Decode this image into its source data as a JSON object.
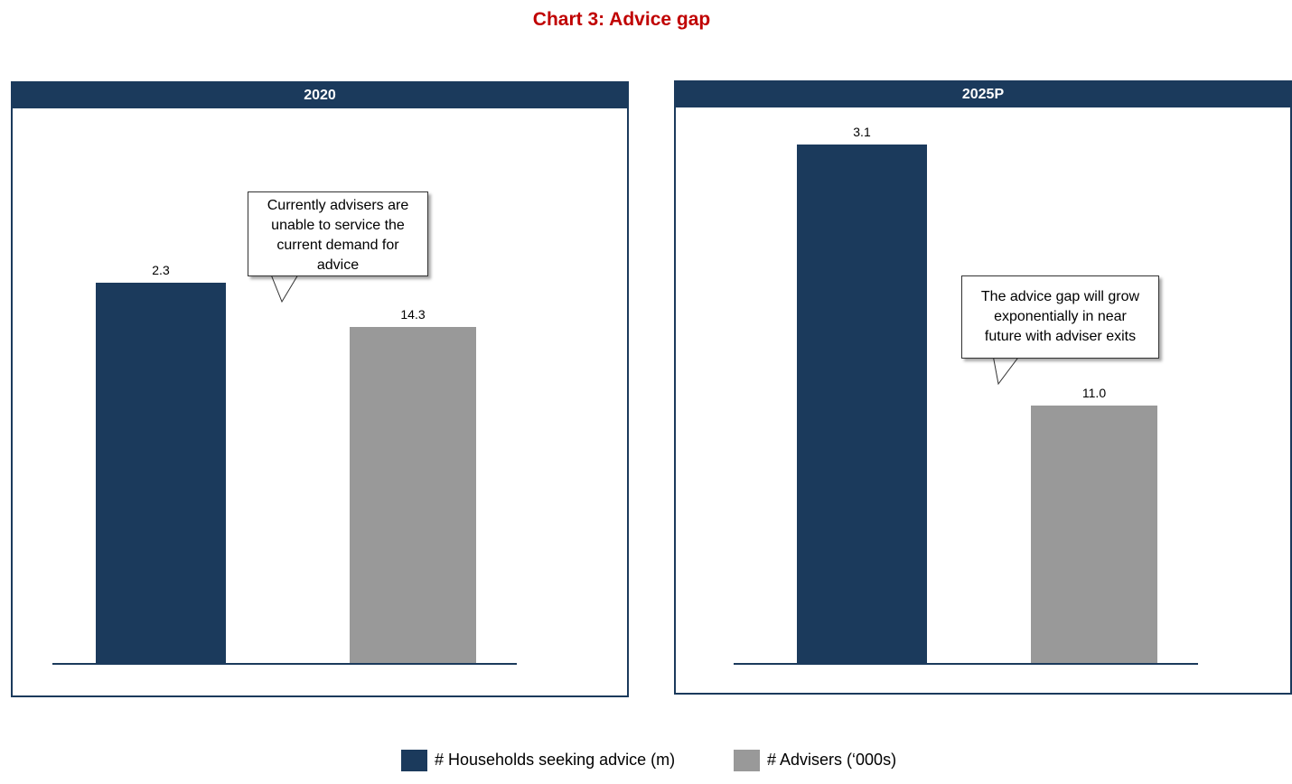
{
  "title": "Chart 3: Advice gap",
  "colors": {
    "households": "#1b3a5c",
    "advisers": "#999999",
    "title": "#c00000"
  },
  "legend": {
    "households": "# Households seeking advice (m)",
    "advisers": "# Advisers (‘000s)"
  },
  "panels": [
    {
      "header": "2020",
      "callout": "Currently advisers are\nunable to service the\ncurrent demand for\nadvice"
    },
    {
      "header": "2025P",
      "callout": "The advice gap will grow\nexponentially in near\nfuture with adviser exits"
    }
  ],
  "chart_data": [
    {
      "type": "bar",
      "title": "2020",
      "series": [
        {
          "name": "# Households seeking advice (m)",
          "values": [
            2.3
          ],
          "labels": [
            "2.3"
          ]
        },
        {
          "name": "# Advisers (‘000s)",
          "values": [
            14.3
          ],
          "labels": [
            "14.3"
          ]
        }
      ]
    },
    {
      "type": "bar",
      "title": "2025P",
      "series": [
        {
          "name": "# Households seeking advice (m)",
          "values": [
            3.1
          ],
          "labels": [
            "3.1"
          ]
        },
        {
          "name": "# Advisers (‘000s)",
          "values": [
            11.0
          ],
          "labels": [
            "11.0"
          ]
        }
      ]
    }
  ]
}
